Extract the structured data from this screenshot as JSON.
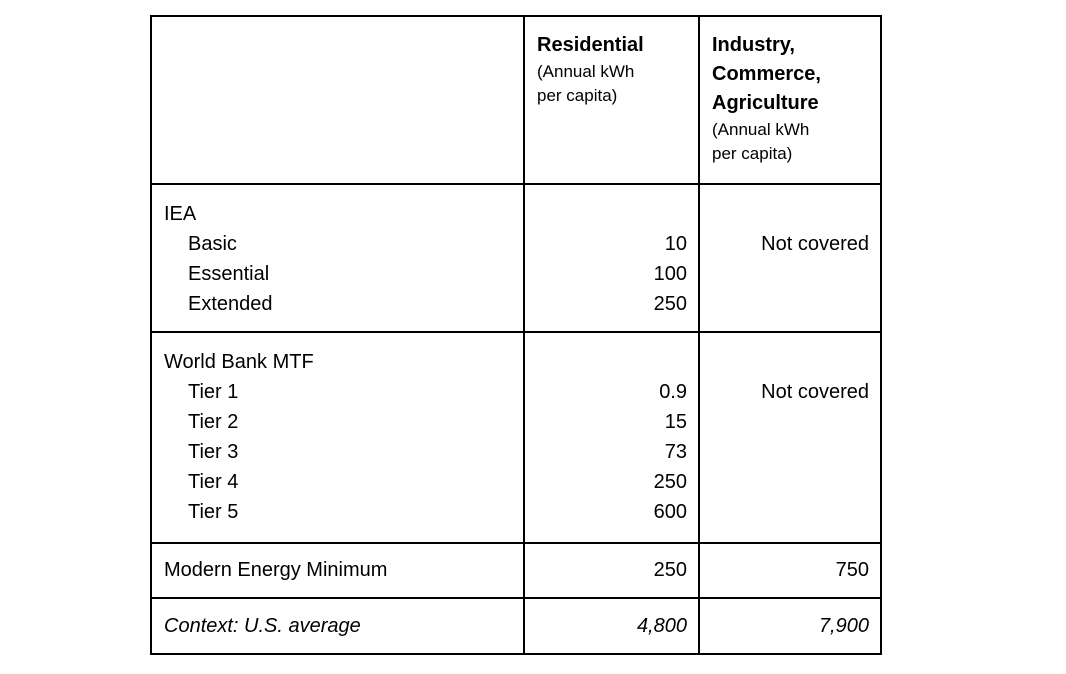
{
  "page": {
    "background": "#ffffff",
    "text_color": "#000000",
    "border_color": "#000000"
  },
  "table": {
    "header": {
      "residential": {
        "title_lines": [
          "Residential"
        ],
        "unit_lines": [
          "(Annual kWh",
          "per capita)"
        ]
      },
      "industry": {
        "title_lines": [
          "Industry,",
          "Commerce,",
          "Agriculture"
        ],
        "unit_lines": [
          "(Annual kWh",
          "per capita)"
        ]
      }
    },
    "sections": [
      {
        "name": "IEA",
        "items": [
          "Basic",
          "Essential",
          "Extended"
        ],
        "values": [
          "10",
          "100",
          "250"
        ],
        "coverage": "Not covered"
      },
      {
        "name": "World Bank MTF",
        "items": [
          "Tier 1",
          "Tier 2",
          "Tier 3",
          "Tier 4",
          "Tier 5"
        ],
        "values": [
          "0.9",
          "15",
          "73",
          "250",
          "600"
        ],
        "coverage": "Not covered"
      }
    ],
    "summary_rows": [
      {
        "label": "Modern Energy Minimum",
        "residential": "250",
        "industry": "750"
      },
      {
        "label": "Context: U.S. average",
        "residential": "4,800",
        "industry": "7,900"
      }
    ]
  },
  "chart_data": {
    "type": "table",
    "columns": [
      "",
      "Residential (Annual kWh per capita)",
      "Industry, Commerce, Agriculture (Annual kWh per capita)"
    ],
    "rows": [
      [
        "IEA Basic",
        10,
        "Not covered"
      ],
      [
        "IEA Essential",
        100,
        "Not covered"
      ],
      [
        "IEA Extended",
        250,
        "Not covered"
      ],
      [
        "World Bank MTF Tier 1",
        0.9,
        "Not covered"
      ],
      [
        "World Bank MTF Tier 2",
        15,
        "Not covered"
      ],
      [
        "World Bank MTF Tier 3",
        73,
        "Not covered"
      ],
      [
        "World Bank MTF Tier 4",
        250,
        "Not covered"
      ],
      [
        "World Bank MTF Tier 5",
        600,
        "Not covered"
      ],
      [
        "Modern Energy Minimum",
        250,
        750
      ],
      [
        "Context: U.S. average",
        4800,
        7900
      ]
    ]
  }
}
